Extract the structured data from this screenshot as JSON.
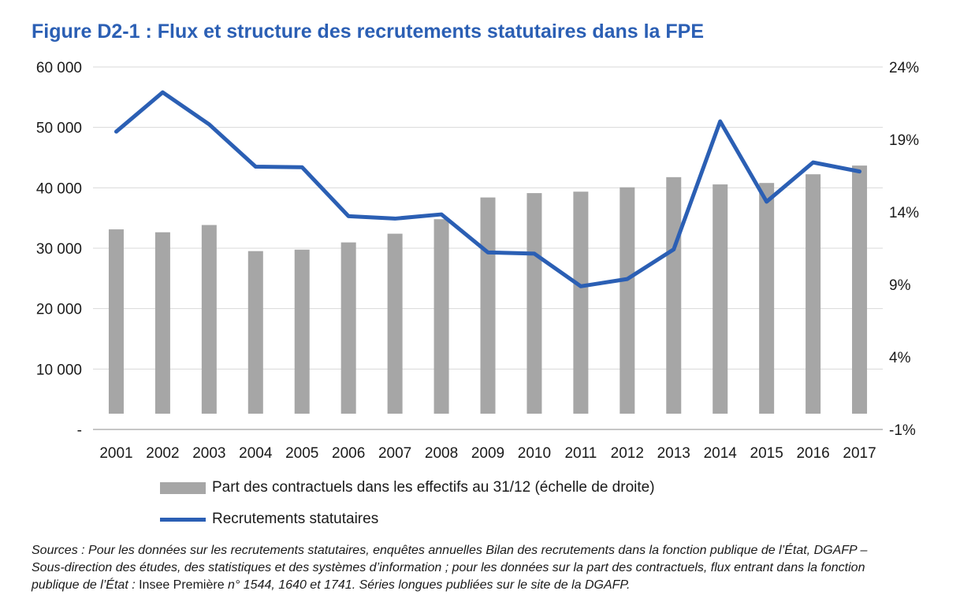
{
  "title": "Figure D2-1 : Flux et structure des recrutements statutaires dans la FPE",
  "chart_data": {
    "type": "bar",
    "categories": [
      "2001",
      "2002",
      "2003",
      "2004",
      "2005",
      "2006",
      "2007",
      "2008",
      "2009",
      "2010",
      "2011",
      "2012",
      "2013",
      "2014",
      "2015",
      "2016",
      "2017"
    ],
    "left_axis": {
      "ylim": [
        0,
        60000
      ],
      "ticks": [
        0,
        10000,
        20000,
        30000,
        40000,
        50000,
        60000
      ],
      "tick_labels": [
        "-",
        "10 000",
        "20 000",
        "30 000",
        "40 000",
        "50 000",
        "60 000"
      ]
    },
    "right_axis": {
      "ylim": [
        -1,
        24
      ],
      "ticks": [
        -1,
        4,
        9,
        14,
        19,
        24
      ],
      "tick_labels": [
        "-1%",
        "4%",
        "9%",
        "14%",
        "19%",
        "24%"
      ]
    },
    "series": [
      {
        "name": "Part des contractuels dans les effectifs au 31/12 (échelle de droite)",
        "type": "bar",
        "axis": "right",
        "color": "#a6a6a6",
        "values": [
          12.8,
          12.6,
          13.1,
          11.3,
          11.4,
          11.9,
          12.5,
          13.5,
          15.0,
          15.3,
          15.4,
          15.7,
          16.4,
          15.9,
          16.0,
          16.6,
          17.2
        ]
      },
      {
        "name": "Recrutements statutaires",
        "type": "line",
        "axis": "left",
        "color": "#2b5fb4",
        "values": [
          49300,
          55800,
          50500,
          43500,
          43400,
          35300,
          34900,
          35600,
          29300,
          29100,
          23700,
          24900,
          29800,
          51000,
          37700,
          44200,
          42700
        ]
      }
    ],
    "grid": true,
    "legend_position": "bottom"
  },
  "sources": {
    "line1": "Sources : Pour les données sur les recrutements statutaires, enquêtes annuelles Bilan des recrutements dans la fonction publique de l’État, DGAFP –",
    "line2": "Sous-direction des études, des statistiques et des systèmes d’information ; pour les données sur la part des contractuels, flux entrant dans la fonction",
    "line3a": "publique de l’État : ",
    "line3b": "Insee Première",
    "line3c": " n° 1544, 1640 et 1741. Séries longues publiées sur le site de la DGAFP."
  }
}
